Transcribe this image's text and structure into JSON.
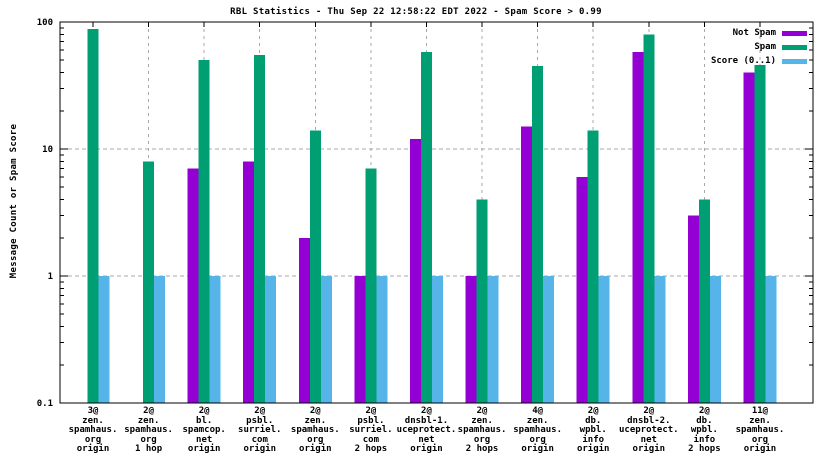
{
  "colors": {
    "not_spam": "#9400d3",
    "spam": "#009e73",
    "score": "#56b4e9",
    "grid": "#a8a8a8",
    "axis": "#000000",
    "background": "#ffffff"
  },
  "y_axis": {
    "label": "Message Count or Spam Score"
  },
  "chart_data": {
    "type": "bar",
    "yscale": "log",
    "ylim": [
      0.1,
      100
    ],
    "yticks": [
      100,
      10,
      1,
      0.1
    ],
    "gridlines_y": [
      10,
      1
    ],
    "grid_x": true,
    "legend_position": "top-right",
    "title": "RBL Statistics - Thu Sep 22 12:58:22 EDT 2022 - Spam Score > 0.99",
    "ylabel": "Message Count or Spam Score",
    "categories": [
      [
        "3@",
        "zen.",
        "spamhaus.",
        "org",
        "origin"
      ],
      [
        "2@",
        "zen.",
        "spamhaus.",
        "org",
        "1 hop"
      ],
      [
        "2@",
        "bl.",
        "spamcop.",
        "net",
        "origin"
      ],
      [
        "2@",
        "psbl.",
        "surriel.",
        "com",
        "origin"
      ],
      [
        "2@",
        "zen.",
        "spamhaus.",
        "org",
        "origin"
      ],
      [
        "2@",
        "psbl.",
        "surriel.",
        "com",
        "2 hops"
      ],
      [
        "2@",
        "dnsbl-1.",
        "uceprotect.",
        "net",
        "origin"
      ],
      [
        "2@",
        "zen.",
        "spamhaus.",
        "org",
        "2 hops"
      ],
      [
        "4@",
        "zen.",
        "spamhaus.",
        "org",
        "origin"
      ],
      [
        "2@",
        "db.",
        "wpbl.",
        "info",
        "origin"
      ],
      [
        "2@",
        "dnsbl-2.",
        "uceprotect.",
        "net",
        "origin"
      ],
      [
        "2@",
        "db.",
        "wpbl.",
        "info",
        "2 hops"
      ],
      [
        "11@",
        "zen.",
        "spamhaus.",
        "org",
        "origin"
      ]
    ],
    "series": [
      {
        "name": "Not Spam",
        "color": "#9400d3",
        "values": [
          null,
          null,
          7,
          8,
          2,
          1,
          12,
          1,
          15,
          6,
          58,
          3,
          40
        ]
      },
      {
        "name": "Spam",
        "color": "#009e73",
        "values": [
          88,
          8,
          50,
          55,
          14,
          7,
          58,
          4,
          45,
          14,
          80,
          4,
          46
        ]
      },
      {
        "name": "Score (0..1)",
        "color": "#56b4e9",
        "values": [
          1,
          1,
          1,
          1,
          1,
          1,
          1,
          1,
          1,
          1,
          1,
          1,
          1
        ]
      }
    ]
  }
}
